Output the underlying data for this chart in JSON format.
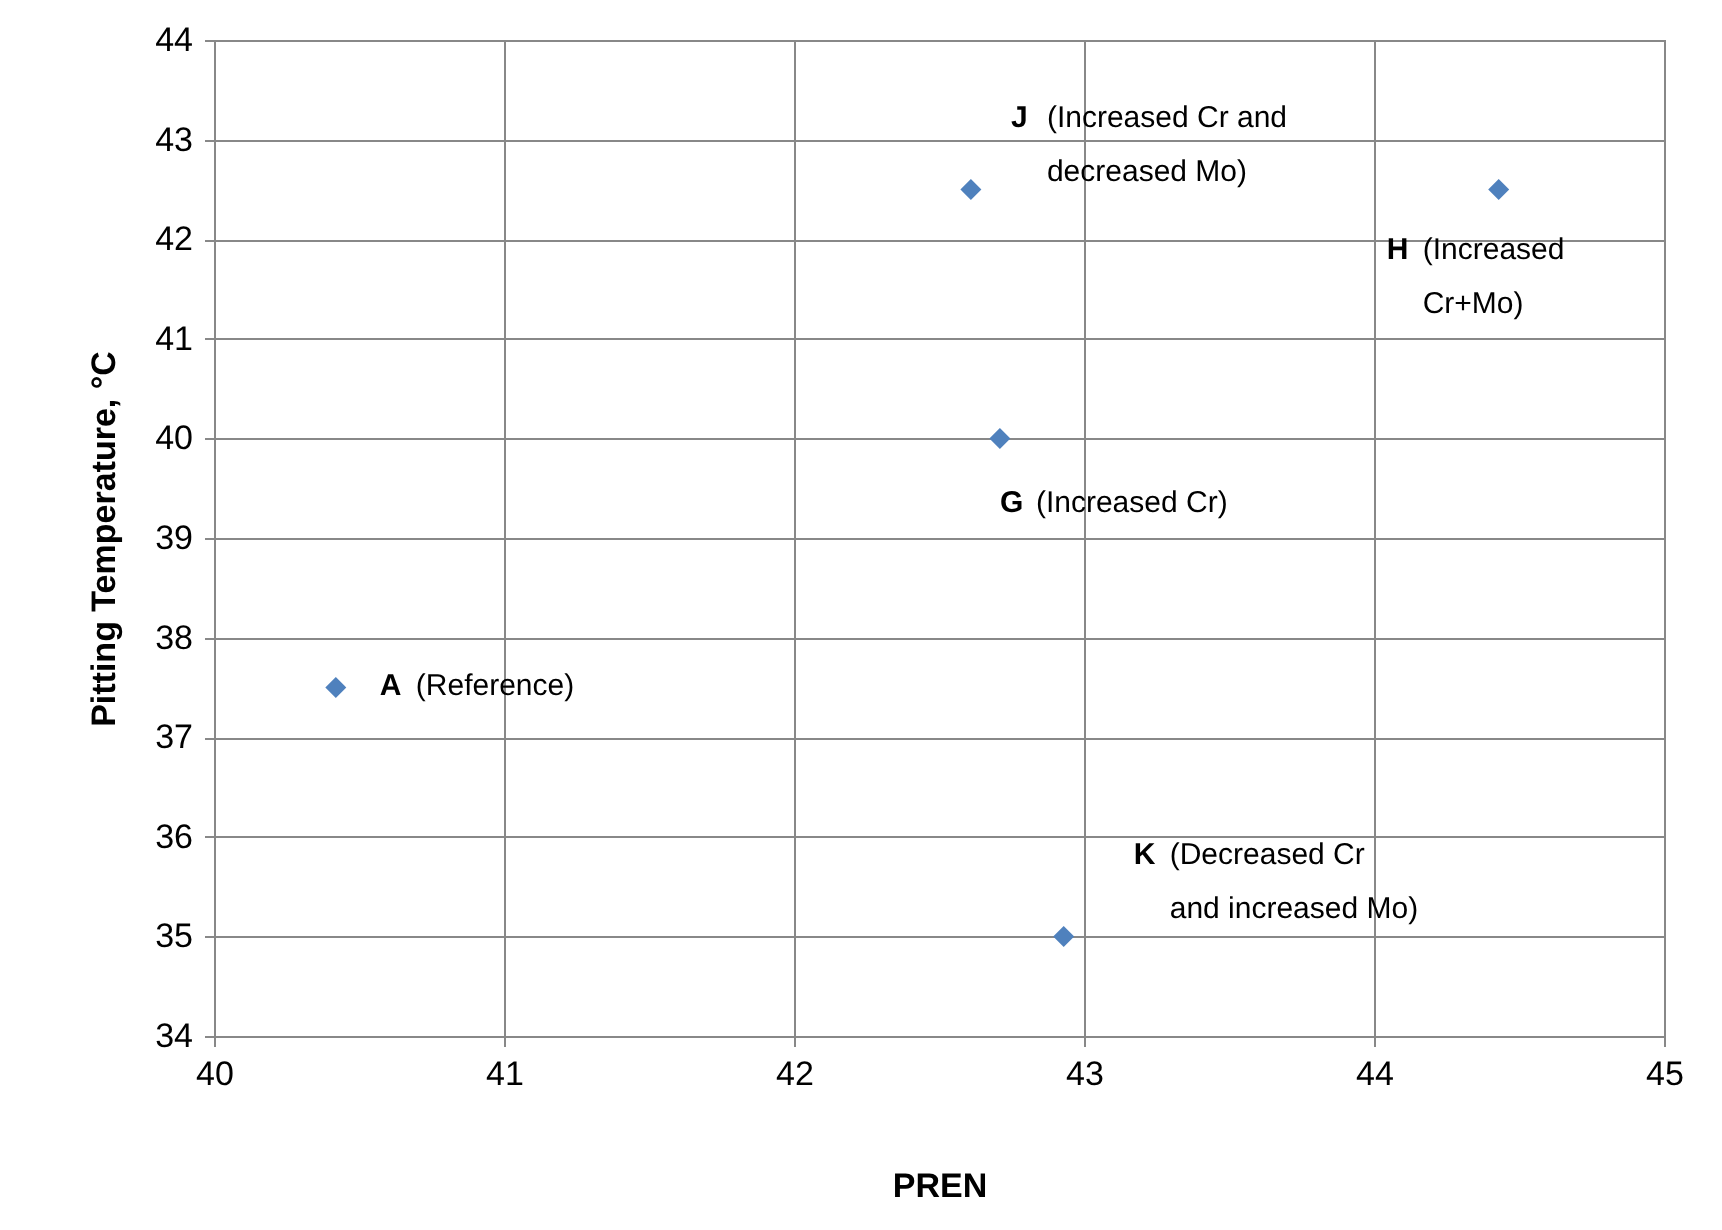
{
  "chart_data": {
    "type": "scatter",
    "xlabel": "PREN",
    "ylabel": "Pitting Temperature, °C",
    "x": [
      40.42,
      42.61,
      44.43,
      42.71,
      42.93
    ],
    "series": [
      {
        "color": "#4f81bd",
        "values": [
          37.5,
          42.5,
          42.5,
          40,
          35
        ]
      }
    ],
    "xlim": [
      40,
      45
    ],
    "xticks": [
      40,
      41,
      42,
      43,
      44,
      45
    ],
    "ylim": [
      34,
      44
    ],
    "yticks": [
      34,
      35,
      36,
      37,
      38,
      39,
      40,
      41,
      42,
      43,
      44
    ],
    "grid": true,
    "marker": "diamond",
    "annotations": [
      {
        "text": "A (Reference)",
        "x": 40.42,
        "y": 37.5
      },
      {
        "text": "J (Increased Cr and decreased Mo)",
        "x": 42.61,
        "y": 42.5
      },
      {
        "text": "H (Increased Cr+Mo)",
        "x": 44.43,
        "y": 42.5
      },
      {
        "text": "G (Increased Cr)",
        "x": 42.71,
        "y": 40
      },
      {
        "text": "K (Decreased Cr and increased Mo)",
        "x": 42.93,
        "y": 35
      }
    ]
  }
}
